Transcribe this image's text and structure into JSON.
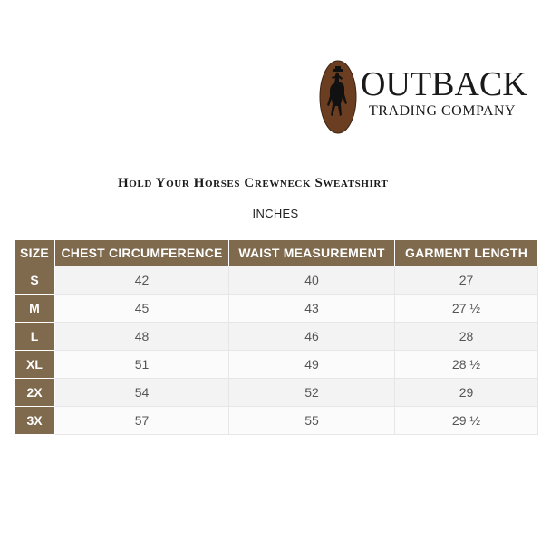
{
  "brand": {
    "name_line1": "OUTBACK",
    "name_line2": "TRADING COMPANY"
  },
  "title": "Hold Your Horses Crewneck Sweatshirt",
  "unit": "INCHES",
  "table": {
    "headers": [
      "SIZE",
      "CHEST CIRCUMFERENCE",
      "WAIST MEASUREMENT",
      "GARMENT LENGTH"
    ],
    "rows": [
      [
        "S",
        "42",
        "40",
        "27"
      ],
      [
        "M",
        "45",
        "43",
        "27 ½"
      ],
      [
        "L",
        "48",
        "46",
        "28"
      ],
      [
        "XL",
        "51",
        "49",
        "28 ½"
      ],
      [
        "2X",
        "54",
        "52",
        "29"
      ],
      [
        "3X",
        "57",
        "55",
        "29 ½"
      ]
    ]
  },
  "colors": {
    "header_bg": "#7f6a4e",
    "logo_oval": "#6b3e22"
  }
}
